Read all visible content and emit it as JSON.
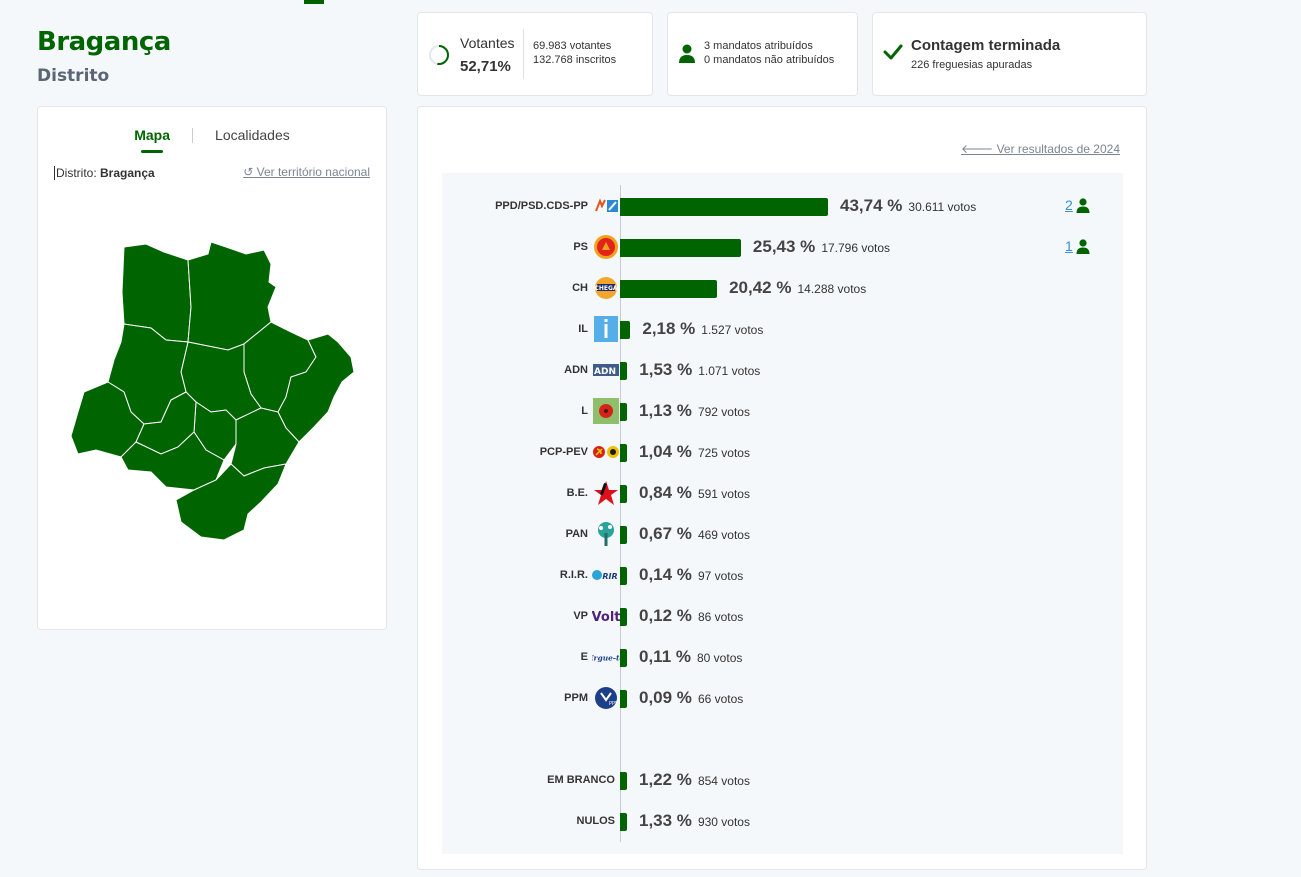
{
  "header": {
    "title": "Bragança",
    "subtitle": "Distrito"
  },
  "map_panel": {
    "tabs": [
      {
        "label": "Mapa",
        "active": true
      },
      {
        "label": "Localidades",
        "active": false
      }
    ],
    "breadcrumb_prefix": "Distrito:",
    "breadcrumb_value": "Bragança",
    "national_link": "Ver território nacional",
    "map_color": "#006400"
  },
  "stats": {
    "votantes": {
      "label": "Votantes",
      "percent": "52,71%",
      "votes": "69.983 votantes",
      "registered": "132.768 inscritos",
      "progress": 0.5271
    },
    "mandatos": {
      "assigned": "3 mandatos atribuídos",
      "unassigned": "0 mandatos não atribuídos"
    },
    "contagem": {
      "title": "Contagem terminada",
      "subtitle": "226 freguesias apuradas"
    }
  },
  "results": {
    "previous_link": "Ver resultados de 2024",
    "rows": [
      {
        "party": "PPD/PSD.CDS-PP",
        "logo": "psd-cds-logo",
        "percent": "43,74 %",
        "value": 43.74,
        "votes": "30.611 votos",
        "seats": "2"
      },
      {
        "party": "PS",
        "logo": "ps-logo",
        "percent": "25,43 %",
        "value": 25.43,
        "votes": "17.796 votos",
        "seats": "1"
      },
      {
        "party": "CH",
        "logo": "chega-logo",
        "percent": "20,42 %",
        "value": 20.42,
        "votes": "14.288 votos",
        "seats": ""
      },
      {
        "party": "IL",
        "logo": "il-logo",
        "percent": "2,18 %",
        "value": 2.18,
        "votes": "1.527 votos",
        "seats": ""
      },
      {
        "party": "ADN",
        "logo": "adn-logo",
        "percent": "1,53 %",
        "value": 1.53,
        "votes": "1.071 votos",
        "seats": ""
      },
      {
        "party": "L",
        "logo": "livre-logo",
        "percent": "1,13 %",
        "value": 1.13,
        "votes": "792 votos",
        "seats": ""
      },
      {
        "party": "PCP-PEV",
        "logo": "cdu-logo",
        "percent": "1,04 %",
        "value": 1.04,
        "votes": "725 votos",
        "seats": ""
      },
      {
        "party": "B.E.",
        "logo": "be-logo",
        "percent": "0,84 %",
        "value": 0.84,
        "votes": "591 votos",
        "seats": ""
      },
      {
        "party": "PAN",
        "logo": "pan-logo",
        "percent": "0,67 %",
        "value": 0.67,
        "votes": "469 votos",
        "seats": ""
      },
      {
        "party": "R.I.R.",
        "logo": "rir-logo",
        "percent": "0,14 %",
        "value": 0.14,
        "votes": "97 votos",
        "seats": ""
      },
      {
        "party": "VP",
        "logo": "volt-logo",
        "percent": "0,12 %",
        "value": 0.12,
        "votes": "86 votos",
        "seats": ""
      },
      {
        "party": "E",
        "logo": "ergue-te-logo",
        "percent": "0,11 %",
        "value": 0.11,
        "votes": "80 votos",
        "seats": ""
      },
      {
        "party": "PPM",
        "logo": "ppm-logo",
        "percent": "0,09 %",
        "value": 0.09,
        "votes": "66 votos",
        "seats": ""
      },
      {
        "party": "EM BRANCO",
        "logo": "",
        "percent": "1,22 %",
        "value": 1.22,
        "votes": "854 votos",
        "seats": ""
      },
      {
        "party": "NULOS",
        "logo": "",
        "percent": "1,33 %",
        "value": 1.33,
        "votes": "930 votos",
        "seats": ""
      }
    ]
  },
  "colors": {
    "accent": "#006400",
    "link": "#3a8fd6",
    "muted_link": "#7a8592"
  }
}
